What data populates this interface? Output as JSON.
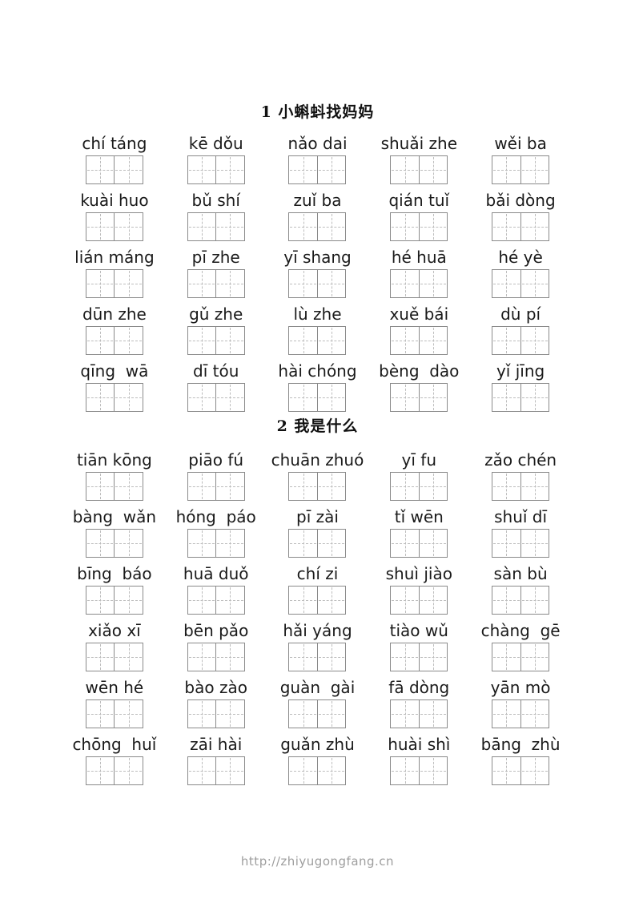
{
  "document": {
    "sections": [
      {
        "title": "1 小蝌蚪找妈妈",
        "rows": [
          [
            "chí táng",
            "kē dǒu",
            "nǎo dai",
            "shuǎi zhe",
            "wěi ba"
          ],
          [
            "kuài huo",
            "bǔ shí",
            "zuǐ ba",
            "qián tuǐ",
            "bǎi dòng"
          ],
          [
            "lián máng",
            "pī zhe",
            "yī shang",
            "hé huā",
            "hé yè"
          ],
          [
            "dūn zhe",
            "gǔ zhe",
            "lù zhe",
            "xuě bái",
            "dù pí"
          ],
          [
            "qīng  wā",
            "dī tóu",
            "hài chóng",
            "bèng  dào",
            "yǐ jīng"
          ]
        ]
      },
      {
        "title": "2 我是什么",
        "rows": [
          [
            "tiān kōng",
            "piāo fú",
            "chuān zhuó",
            "yī fu",
            "zǎo chén"
          ],
          [
            "bàng  wǎn",
            "hóng  páo",
            "pī zài",
            "tǐ wēn",
            "shuǐ dī"
          ],
          [
            "bīng  báo",
            "huā duǒ",
            "chí zi",
            "shuì jiào",
            "sàn bù"
          ],
          [
            "xiǎo xī",
            "bēn pǎo",
            "hǎi yáng",
            "tiào wǔ",
            "chàng  gē"
          ],
          [
            "wēn hé",
            "bào zào",
            "guàn  gài",
            "fā dòng",
            "yān mò"
          ],
          [
            "chōng  huǐ",
            "zāi hài",
            "guǎn zhù",
            "huài shì",
            "bāng  zhù"
          ]
        ]
      }
    ],
    "footer": {
      "url": "http://zhiyugongfang.cn"
    }
  },
  "style": {
    "text_color": "#1a1a1a",
    "box_border_color": "#8a8a8a",
    "box_guide_color": "#bdbdbd",
    "footer_color": "#9e9e9e",
    "background": "#ffffff"
  }
}
